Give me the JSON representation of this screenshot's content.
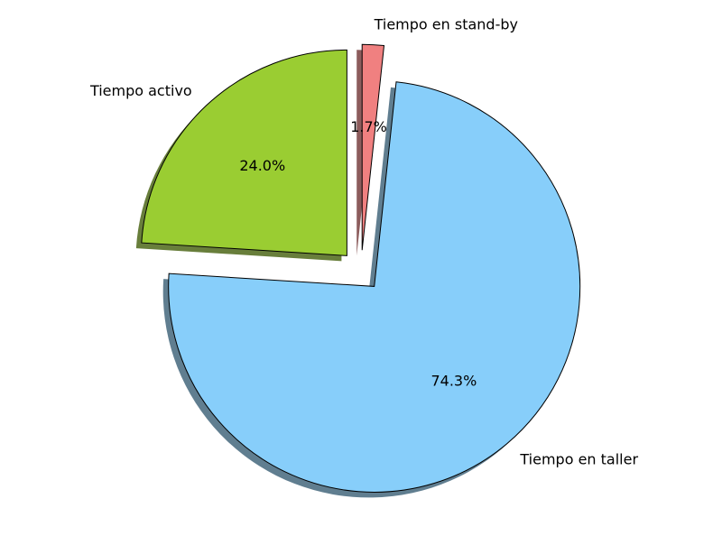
{
  "chart_data": {
    "type": "pie",
    "title": "",
    "slices": [
      {
        "label": "Tiempo en stand-by",
        "value": 1.7,
        "pct_label": "1.7%",
        "color": "#F08080",
        "exploded": true
      },
      {
        "label": "Tiempo en taller",
        "value": 74.3,
        "pct_label": "74.3%",
        "color": "#87CEFA",
        "exploded": true
      },
      {
        "label": "Tiempo activo",
        "value": 24.0,
        "pct_label": "24.0%",
        "color": "#9ACD32",
        "exploded": true
      }
    ],
    "shadow": true,
    "start_angle_deg": 90,
    "direction": "clockwise",
    "legend": "none"
  }
}
